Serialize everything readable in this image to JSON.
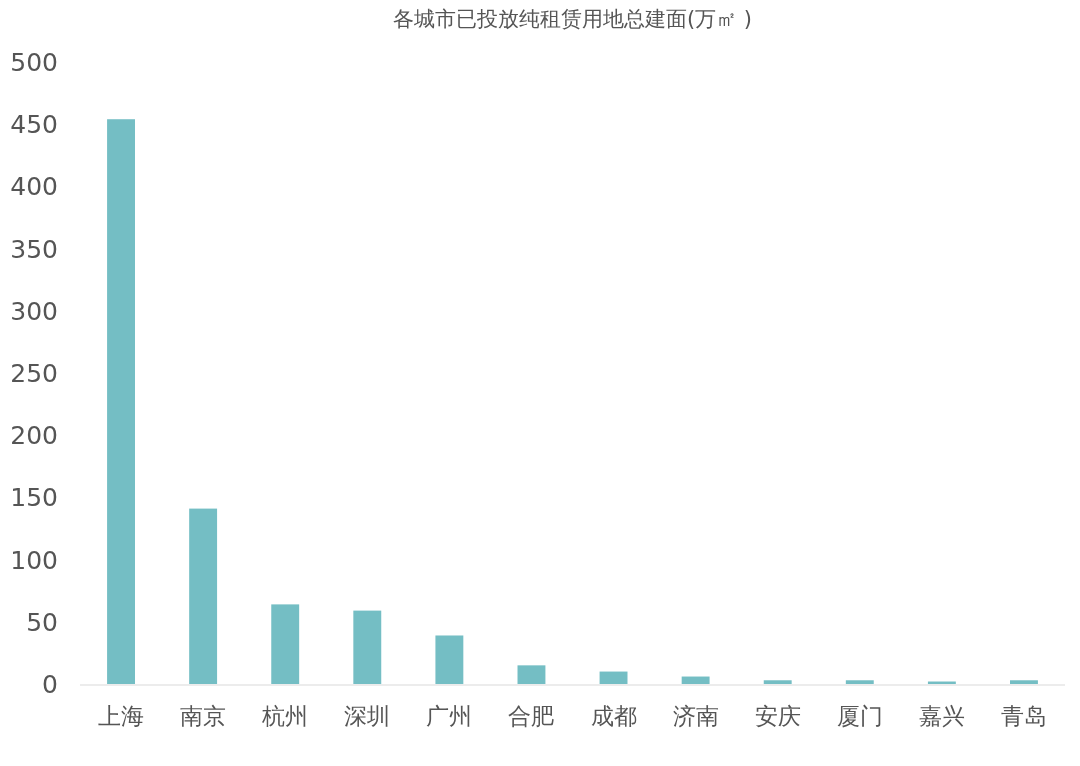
{
  "chart_data": {
    "type": "bar",
    "title": "各城市已投放纯租赁用地总建面(万㎡ )",
    "categories": [
      "上海",
      "南京",
      "杭州",
      "深圳",
      "广州",
      "合肥",
      "成都",
      "济南",
      "安庆",
      "厦门",
      "嘉兴",
      "青岛"
    ],
    "values": [
      454,
      141,
      64,
      59,
      39,
      15,
      10,
      6,
      3,
      3,
      2,
      3
    ],
    "color": "#74bec4",
    "ylim": [
      0,
      500
    ],
    "yticks": [
      0,
      50,
      100,
      150,
      200,
      250,
      300,
      350,
      400,
      450,
      500
    ],
    "grid": false
  }
}
